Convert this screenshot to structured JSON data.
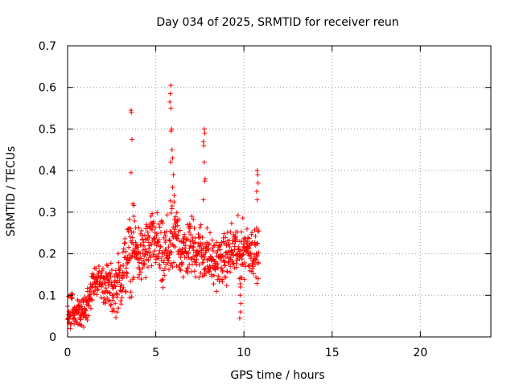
{
  "chart_data": {
    "type": "scatter",
    "title": "Day 034 of 2025, SRMTID for receiver reun",
    "xlabel": "GPS time / hours",
    "ylabel": "SRMTID / TECUs",
    "xlim": [
      0,
      24
    ],
    "ylim": [
      0,
      0.7
    ],
    "xticks": [
      0,
      5,
      10,
      15,
      20
    ],
    "xtick_labels": [
      "0",
      "5",
      "10",
      "15",
      "20"
    ],
    "yticks": [
      0,
      0.1,
      0.2,
      0.3,
      0.4,
      0.5,
      0.6,
      0.7
    ],
    "ytick_labels": [
      "0",
      "0.1",
      "0.2",
      "0.3",
      "0.4",
      "0.5",
      "0.6",
      "0.7"
    ],
    "grid": true,
    "marker": "+",
    "series": [
      {
        "name": "SRMTID",
        "color": "#ff0000",
        "trend": [
          [
            0.0,
            0.065,
            0.03
          ],
          [
            0.4,
            0.06,
            0.03
          ],
          [
            0.8,
            0.05,
            0.025
          ],
          [
            1.0,
            0.07,
            0.03
          ],
          [
            1.3,
            0.11,
            0.03
          ],
          [
            1.6,
            0.14,
            0.025
          ],
          [
            2.0,
            0.13,
            0.03
          ],
          [
            2.3,
            0.12,
            0.04
          ],
          [
            2.6,
            0.11,
            0.04
          ],
          [
            3.0,
            0.14,
            0.05
          ],
          [
            3.4,
            0.19,
            0.06
          ],
          [
            3.8,
            0.21,
            0.06
          ],
          [
            4.2,
            0.19,
            0.05
          ],
          [
            4.6,
            0.22,
            0.05
          ],
          [
            5.0,
            0.23,
            0.05
          ],
          [
            5.4,
            0.18,
            0.06
          ],
          [
            5.8,
            0.22,
            0.06
          ],
          [
            6.2,
            0.24,
            0.06
          ],
          [
            6.6,
            0.2,
            0.05
          ],
          [
            7.0,
            0.22,
            0.05
          ],
          [
            7.4,
            0.21,
            0.05
          ],
          [
            7.8,
            0.2,
            0.05
          ],
          [
            8.2,
            0.18,
            0.04
          ],
          [
            8.6,
            0.18,
            0.04
          ],
          [
            9.0,
            0.19,
            0.04
          ],
          [
            9.4,
            0.21,
            0.05
          ],
          [
            9.8,
            0.2,
            0.05
          ],
          [
            10.2,
            0.22,
            0.04
          ],
          [
            10.6,
            0.2,
            0.04
          ],
          [
            10.85,
            0.2,
            0.04
          ]
        ],
        "outliers": [
          [
            3.6,
            0.545
          ],
          [
            3.62,
            0.54
          ],
          [
            3.65,
            0.475
          ],
          [
            3.6,
            0.395
          ],
          [
            3.7,
            0.32
          ],
          [
            3.75,
            0.29
          ],
          [
            5.85,
            0.605
          ],
          [
            5.82,
            0.585
          ],
          [
            5.8,
            0.565
          ],
          [
            5.86,
            0.55
          ],
          [
            5.9,
            0.5
          ],
          [
            5.87,
            0.495
          ],
          [
            5.92,
            0.45
          ],
          [
            5.95,
            0.43
          ],
          [
            5.85,
            0.42
          ],
          [
            6.0,
            0.39
          ],
          [
            5.95,
            0.36
          ],
          [
            6.05,
            0.34
          ],
          [
            7.75,
            0.5
          ],
          [
            7.78,
            0.49
          ],
          [
            7.7,
            0.47
          ],
          [
            7.72,
            0.46
          ],
          [
            7.75,
            0.42
          ],
          [
            7.8,
            0.38
          ],
          [
            7.78,
            0.375
          ],
          [
            7.7,
            0.33
          ],
          [
            9.75,
            0.14
          ],
          [
            9.8,
            0.12
          ],
          [
            9.78,
            0.1
          ],
          [
            9.82,
            0.08
          ],
          [
            9.8,
            0.06
          ],
          [
            9.76,
            0.045
          ],
          [
            10.75,
            0.4
          ],
          [
            10.78,
            0.39
          ],
          [
            10.8,
            0.37
          ],
          [
            10.72,
            0.35
          ],
          [
            10.75,
            0.33
          ]
        ]
      }
    ]
  }
}
